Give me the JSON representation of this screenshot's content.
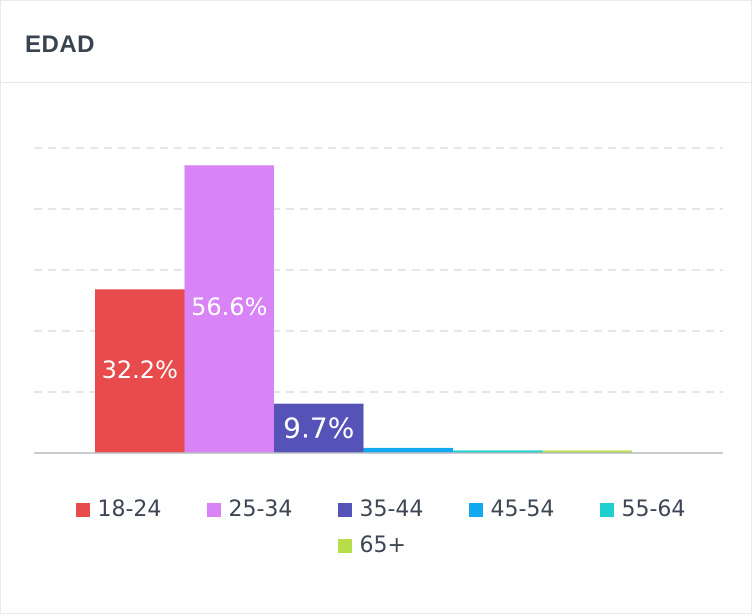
{
  "card": {
    "title": "EDAD"
  },
  "chart_data": {
    "type": "bar",
    "title": "EDAD",
    "xlabel": "",
    "ylabel": "",
    "ylim": [
      0,
      60
    ],
    "grid": true,
    "legend_position": "bottom",
    "categories": [
      "18-24",
      "25-34",
      "35-44",
      "45-54",
      "55-64",
      "65+"
    ],
    "values": [
      32.2,
      56.6,
      9.7,
      1.0,
      0.5,
      0.3
    ],
    "data_labels": [
      "32.2%",
      "56.6%",
      "9.7%",
      "",
      "",
      ""
    ],
    "colors": [
      "#e84b4b",
      "#d884f7",
      "#5552b8",
      "#12a9f0",
      "#1ecfcf",
      "#b8dd4a"
    ]
  }
}
